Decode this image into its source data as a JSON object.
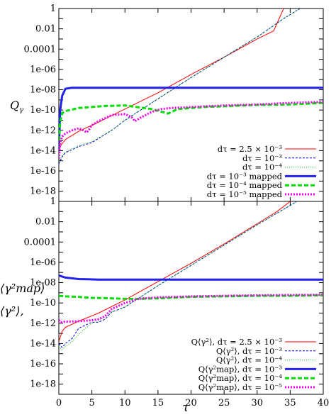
{
  "chart_data": [
    {
      "type": "line",
      "ylabel": "Q_γ",
      "y_scale": "log",
      "xlim": [
        0,
        40
      ],
      "ylim_exp": [
        -19,
        0
      ],
      "yticks": [
        "1",
        "0.01",
        "0.0001",
        "1e-06",
        "1e-08",
        "1e-10",
        "1e-12",
        "1e-14",
        "1e-16",
        "1e-18"
      ],
      "xticks": [],
      "legend_position": "bottom-right",
      "series": [
        {
          "name": "dτ = 2.5 × 10⁻³",
          "color": "#ff0000",
          "style": "thin",
          "x": [
            0,
            0.5,
            1,
            3,
            6,
            10,
            15,
            20,
            25,
            30,
            32.5,
            34
          ],
          "log10y": [
            -13.8,
            -13.3,
            -12.9,
            -12.1,
            -11.2,
            -9.9,
            -8.3,
            -6.5,
            -4.8,
            -3.0,
            -2.2,
            0
          ]
        },
        {
          "name": "dτ = 10⁻³",
          "color": "#0000cc",
          "style": "dash",
          "x": [
            0,
            0.5,
            1,
            3,
            5,
            8,
            10,
            15,
            20,
            25,
            30,
            34,
            36.5
          ],
          "log10y": [
            -15.3,
            -14.6,
            -14.2,
            -13.6,
            -13.2,
            -12.0,
            -11.0,
            -8.9,
            -6.8,
            -4.8,
            -2.8,
            -1.0,
            0
          ]
        },
        {
          "name": "dτ = 10⁻⁴",
          "color": "#00cc00",
          "style": "dot",
          "x": [
            0,
            0.5,
            1,
            3,
            5,
            8,
            10,
            15,
            20,
            25,
            30,
            34,
            36.5
          ],
          "log10y": [
            -15.1,
            -14.5,
            -14.1,
            -13.5,
            -13.1,
            -12.0,
            -11.0,
            -8.9,
            -6.8,
            -4.8,
            -2.8,
            -1.0,
            0
          ]
        },
        {
          "name": "dτ = 10⁻³ mapped",
          "color": "#2222ee",
          "style": "thick",
          "x": [
            0,
            0.2,
            0.5,
            1,
            2,
            5,
            10,
            20,
            30,
            40
          ],
          "log10y": [
            -14,
            -10,
            -8.6,
            -7.9,
            -7.8,
            -7.8,
            -7.8,
            -7.8,
            -7.8,
            -7.8
          ]
        },
        {
          "name": "dτ = 10⁻⁴ mapped",
          "color": "#00dd00",
          "style": "thickdash",
          "x": [
            0,
            0.2,
            0.5,
            1,
            3,
            7,
            10,
            14,
            16,
            16.5,
            18,
            22,
            26,
            30,
            35,
            40
          ],
          "log10y": [
            -13,
            -11.2,
            -10.3,
            -10.1,
            -9.8,
            -9.6,
            -9.55,
            -9.9,
            -10.25,
            -10.35,
            -9.9,
            -9.7,
            -9.6,
            -9.5,
            -9.45,
            -9.3
          ]
        },
        {
          "name": "dτ = 10⁻⁵ mapped",
          "color": "#ee00ee",
          "style": "thickdot",
          "x": [
            0,
            0.2,
            0.5,
            1,
            2,
            3,
            3.5,
            4.2,
            4.5,
            5,
            6,
            8,
            10,
            11,
            11.5,
            12.5,
            14,
            15.5,
            17,
            20,
            25,
            30,
            35,
            40
          ],
          "log10y": [
            -14.8,
            -13.2,
            -12.6,
            -12.3,
            -12.0,
            -11.8,
            -11.9,
            -12.2,
            -12.0,
            -11.5,
            -11.1,
            -10.5,
            -10.4,
            -10.7,
            -11.1,
            -10.7,
            -10.2,
            -9.9,
            -9.8,
            -9.7,
            -9.55,
            -9.45,
            -9.3,
            -9.2
          ]
        }
      ]
    },
    {
      "type": "line",
      "ylabel_lines": [
        "⟨γ²map⟩",
        "⟨γ²⟩,"
      ],
      "xlabel": "τ",
      "y_scale": "log",
      "xlim": [
        0,
        40
      ],
      "ylim_exp": [
        -19,
        0
      ],
      "yticks": [
        "1",
        "0.01",
        "0.0001",
        "1e-06",
        "1e-08",
        "1e-10",
        "1e-12",
        "1e-14",
        "1e-16",
        "1e-18"
      ],
      "xticks": [
        "0",
        "5",
        "10",
        "15",
        "20",
        "25",
        "30",
        "35",
        "40"
      ],
      "legend_position": "bottom-right",
      "series": [
        {
          "name": "Q⟨γ²⟩, dτ = 2.5 × 10⁻³",
          "color": "#ff0000",
          "style": "thin",
          "x": [
            0,
            0.5,
            1,
            3,
            6,
            10,
            15,
            20,
            25,
            30,
            33,
            35
          ],
          "log10y": [
            -13.8,
            -12.8,
            -12.4,
            -11.8,
            -11.0,
            -9.7,
            -7.9,
            -6.1,
            -4.2,
            -2.2,
            -1.0,
            0
          ]
        },
        {
          "name": "Q⟨γ²⟩, dτ = 10⁻³",
          "color": "#0000cc",
          "style": "dash",
          "x": [
            0,
            0.5,
            1,
            2,
            3,
            5,
            6,
            7,
            8,
            10,
            15,
            20,
            25,
            30,
            35,
            36
          ],
          "log10y": [
            -14.0,
            -14.4,
            -14.0,
            -13.5,
            -12.5,
            -11.9,
            -11.9,
            -11.6,
            -10.9,
            -10.4,
            -8.3,
            -6.3,
            -4.3,
            -2.3,
            -0.4,
            0
          ]
        },
        {
          "name": "Q⟨γ²⟩, dτ = 10⁻⁴",
          "color": "#00cc00",
          "style": "dot",
          "x": [
            0,
            0.5,
            1,
            2,
            3,
            4,
            5,
            6,
            7,
            8,
            10,
            15,
            20,
            25,
            30,
            35,
            36
          ],
          "log10y": [
            -14.3,
            -14.6,
            -14.3,
            -13.8,
            -13.1,
            -12.5,
            -12.0,
            -11.7,
            -11.4,
            -10.9,
            -10.4,
            -8.3,
            -6.3,
            -4.3,
            -2.3,
            -0.4,
            0
          ]
        },
        {
          "name": "Q⟨γ²map⟩, dτ = 10⁻³",
          "color": "#2222ee",
          "style": "thick",
          "x": [
            0,
            0.5,
            1,
            3,
            6,
            10,
            20,
            30,
            40
          ],
          "log10y": [
            -7.3,
            -7.4,
            -7.5,
            -7.65,
            -7.7,
            -7.7,
            -7.7,
            -7.7,
            -7.7
          ]
        },
        {
          "name": "Q⟨γ²map⟩, dτ = 10⁻⁴",
          "color": "#00dd00",
          "style": "thickdash",
          "x": [
            0,
            1,
            3,
            5,
            8,
            10,
            12,
            15,
            20,
            25,
            30,
            35,
            40
          ],
          "log10y": [
            -9.3,
            -9.35,
            -9.4,
            -9.5,
            -9.55,
            -9.6,
            -9.6,
            -9.55,
            -9.4,
            -9.35,
            -9.3,
            -9.3,
            -9.25
          ]
        },
        {
          "name": "Q⟨γ²map⟩, dτ = 10⁻⁵",
          "color": "#ee00ee",
          "style": "thickdot",
          "x": [
            0,
            0.3,
            1,
            3,
            5,
            6,
            7,
            8,
            10,
            12,
            15,
            20,
            25,
            30,
            35,
            40
          ],
          "log10y": [
            -11.7,
            -11.9,
            -11.85,
            -11.8,
            -11.7,
            -11.6,
            -11.3,
            -10.6,
            -10.0,
            -9.6,
            -9.45,
            -9.35,
            -9.3,
            -9.25,
            -9.22,
            -9.2
          ]
        }
      ]
    }
  ]
}
